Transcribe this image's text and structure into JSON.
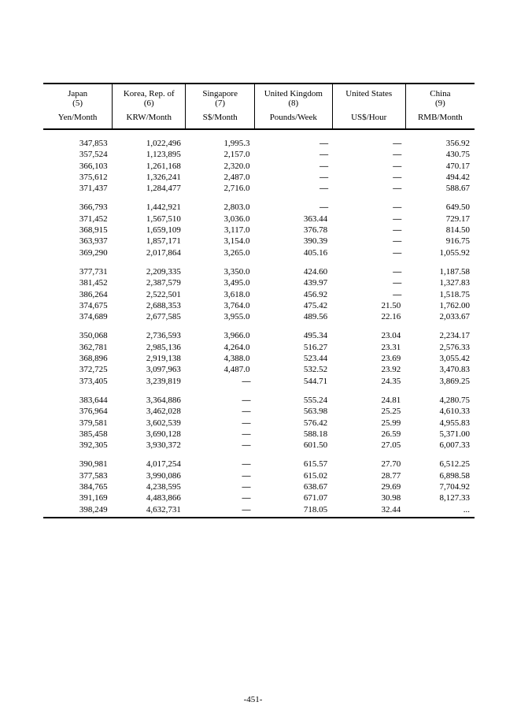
{
  "page_number": "-451-",
  "table": {
    "background_color": "#ffffff",
    "text_color": "#000000",
    "border_color": "#000000",
    "font_family": "Georgia",
    "header_fontsize": 11,
    "body_fontsize": 11,
    "columns": [
      {
        "country": "Japan",
        "note": "(5)",
        "unit": "Yen/Month",
        "width": "16%"
      },
      {
        "country": "Korea, Rep. of",
        "note": "(6)",
        "unit": "KRW/Month",
        "width": "17%"
      },
      {
        "country": "Singapore",
        "note": "(7)",
        "unit": "S$/Month",
        "width": "16%"
      },
      {
        "country": "United Kingdom",
        "note": "(8)",
        "unit": "Pounds/Week",
        "width": "18%"
      },
      {
        "country": "United States",
        "note": "",
        "unit": "US$/Hour",
        "width": "17%"
      },
      {
        "country": "China",
        "note": "(9)",
        "unit": "RMB/Month",
        "width": "16%"
      }
    ],
    "dash": "—",
    "groups": [
      [
        [
          "347,853",
          "1,022,496",
          "1,995.3",
          "—",
          "—",
          "356.92"
        ],
        [
          "357,524",
          "1,123,895",
          "2,157.0",
          "—",
          "—",
          "430.75"
        ],
        [
          "366,103",
          "1,261,168",
          "2,320.0",
          "—",
          "—",
          "470.17"
        ],
        [
          "375,612",
          "1,326,241",
          "2,487.0",
          "—",
          "—",
          "494.42"
        ],
        [
          "371,437",
          "1,284,477",
          "2,716.0",
          "—",
          "—",
          "588.67"
        ]
      ],
      [
        [
          "366,793",
          "1,442,921",
          "2,803.0",
          "—",
          "—",
          "649.50"
        ],
        [
          "371,452",
          "1,567,510",
          "3,036.0",
          "363.44",
          "—",
          "729.17"
        ],
        [
          "368,915",
          "1,659,109",
          "3,117.0",
          "376.78",
          "—",
          "814.50"
        ],
        [
          "363,937",
          "1,857,171",
          "3,154.0",
          "390.39",
          "—",
          "916.75"
        ],
        [
          "369,290",
          "2,017,864",
          "3,265.0",
          "405.16",
          "—",
          "1,055.92"
        ]
      ],
      [
        [
          "377,731",
          "2,209,335",
          "3,350.0",
          "424.60",
          "—",
          "1,187.58"
        ],
        [
          "381,452",
          "2,387,579",
          "3,495.0",
          "439.97",
          "—",
          "1,327.83"
        ],
        [
          "386,264",
          "2,522,501",
          "3,618.0",
          "456.92",
          "—",
          "1,518.75"
        ],
        [
          "374,675",
          "2,688,353",
          "3,764.0",
          "475.42",
          "21.50",
          "1,762.00"
        ],
        [
          "374,689",
          "2,677,585",
          "3,955.0",
          "489.56",
          "22.16",
          "2,033.67"
        ]
      ],
      [
        [
          "350,068",
          "2,736,593",
          "3,966.0",
          "495.34",
          "23.04",
          "2,234.17"
        ],
        [
          "362,781",
          "2,985,136",
          "4,264.0",
          "516.27",
          "23.31",
          "2,576.33"
        ],
        [
          "368,896",
          "2,919,138",
          "4,388.0",
          "523.44",
          "23.69",
          "3,055.42"
        ],
        [
          "372,725",
          "3,097,963",
          "4,487.0",
          "532.52",
          "23.92",
          "3,470.83"
        ],
        [
          "373,405",
          "3,239,819",
          "—",
          "544.71",
          "24.35",
          "3,869.25"
        ]
      ],
      [
        [
          "383,644",
          "3,364,886",
          "—",
          "555.24",
          "24.81",
          "4,280.75"
        ],
        [
          "376,964",
          "3,462,028",
          "—",
          "563.98",
          "25.25",
          "4,610.33"
        ],
        [
          "379,581",
          "3,602,539",
          "—",
          "576.42",
          "25.99",
          "4,955.83"
        ],
        [
          "385,458",
          "3,690,128",
          "—",
          "588.18",
          "26.59",
          "5,371.00"
        ],
        [
          "392,305",
          "3,930,372",
          "—",
          "601.50",
          "27.05",
          "6,007.33"
        ]
      ],
      [
        [
          "390,981",
          "4,017,254",
          "—",
          "615.57",
          "27.70",
          "6,512.25"
        ],
        [
          "377,583",
          "3,990,086",
          "—",
          "615.02",
          "28.77",
          "6,898.58"
        ],
        [
          "384,765",
          "4,238,595",
          "—",
          "638.67",
          "29.69",
          "7,704.92"
        ],
        [
          "391,169",
          "4,483,866",
          "—",
          "671.07",
          "30.98",
          "8,127.33"
        ],
        [
          "398,249",
          "4,632,731",
          "—",
          "718.05",
          "32.44",
          "..."
        ]
      ]
    ]
  }
}
